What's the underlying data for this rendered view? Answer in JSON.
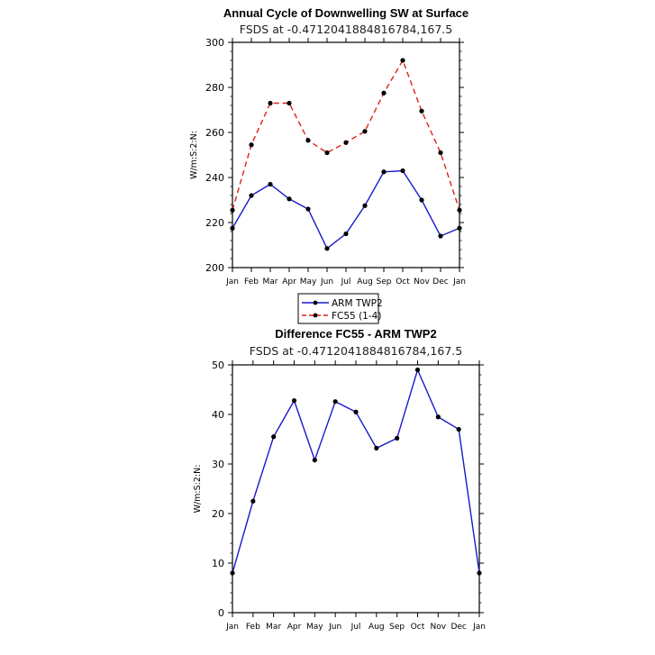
{
  "chart_data": [
    {
      "type": "line",
      "title": "Annual Cycle of Downwelling SW at Surface",
      "subtitle": "FSDS at -0.4712041884816784,167.5",
      "ylabel": "W/m:S:2:N:",
      "xlabel": "",
      "ylim": [
        200,
        300
      ],
      "yticks": [
        200,
        220,
        240,
        260,
        280,
        300
      ],
      "categories": [
        "Jan",
        "Feb",
        "Mar",
        "Apr",
        "May",
        "Jun",
        "Jul",
        "Aug",
        "Sep",
        "Oct",
        "Nov",
        "Dec",
        "Jan"
      ],
      "series": [
        {
          "name": "ARM TWP2",
          "color": "#1a1acc",
          "dash": "solid",
          "values": [
            217.5,
            232,
            237,
            230.5,
            226,
            208.5,
            215,
            227.5,
            242.5,
            243,
            230,
            214,
            217.5
          ]
        },
        {
          "name": "FC55 (1-4)",
          "color": "#e0201b",
          "dash": "dashed",
          "values": [
            225.5,
            254.5,
            273,
            273,
            256.5,
            251,
            255.5,
            260.5,
            277.5,
            292,
            269.5,
            251,
            225.5
          ]
        }
      ],
      "legend": "below"
    },
    {
      "type": "line",
      "title": "Difference FC55 - ARM TWP2",
      "subtitle": "FSDS at -0.4712041884816784,167.5",
      "ylabel": "W/m:S:2:N:",
      "xlabel": "",
      "ylim": [
        0,
        50
      ],
      "yticks": [
        0,
        10,
        20,
        30,
        40,
        50
      ],
      "categories": [
        "Jan",
        "Feb",
        "Mar",
        "Apr",
        "May",
        "Jun",
        "Jul",
        "Aug",
        "Sep",
        "Oct",
        "Nov",
        "Dec",
        "Jan"
      ],
      "series": [
        {
          "name": "Difference",
          "color": "#1a1acc",
          "dash": "solid",
          "values": [
            8,
            22.5,
            35.5,
            42.8,
            30.8,
            42.6,
            40.5,
            33.2,
            35.2,
            49,
            39.5,
            37,
            8
          ]
        }
      ]
    }
  ]
}
